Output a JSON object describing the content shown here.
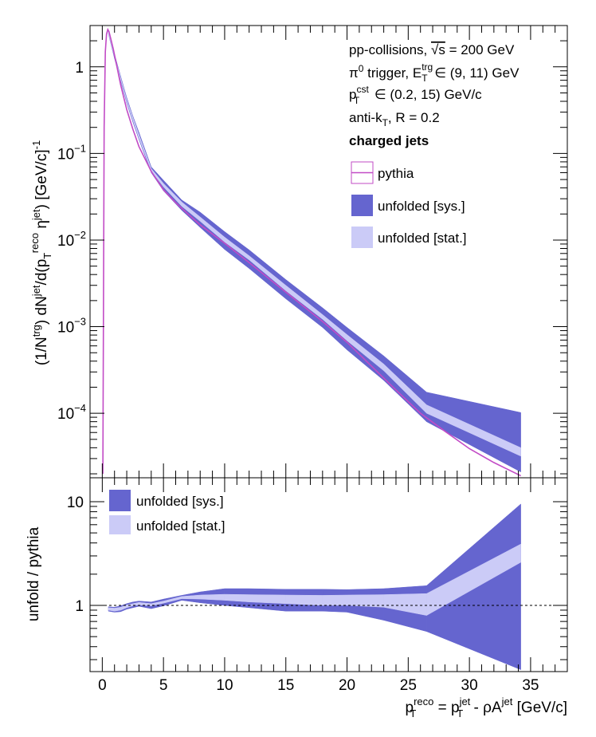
{
  "chart_data": [
    {
      "type": "line",
      "scale": {
        "x": "linear",
        "y": "log"
      },
      "xlim": [
        -1,
        38
      ],
      "ylim": [
        1.8e-05,
        3
      ],
      "ylabel": {
        "p1": "(1/N",
        "sup1": "trg",
        "p2": ") dN",
        "sup2": "jet",
        "p3": "/d(p",
        "sub3": "T",
        "sup3": "reco",
        "p4": " η",
        "sup4": "jet",
        "p5": ") [GeV/c]",
        "sup5": "-1"
      },
      "y_ticks": [
        {
          "value": 0.0001,
          "base": "10",
          "exp": "−4"
        },
        {
          "value": 0.001,
          "base": "10",
          "exp": "−3"
        },
        {
          "value": 0.01,
          "base": "10",
          "exp": "−2"
        },
        {
          "value": 0.1,
          "base": "10",
          "exp": "−1"
        },
        {
          "value": 1,
          "base": "1",
          "exp": ""
        }
      ],
      "info": {
        "line1a": "pp-collisions, ",
        "line1sqrt": "√s",
        "line1b": " = 200 GeV",
        "line2a": "π",
        "line2sup": "0",
        "line2b": " trigger, E",
        "line2sup2": "trg",
        "line2sub": "T",
        "line2c": " ∈ (9, 11) GeV",
        "line3a": "p",
        "line3sup": "cst",
        "line3sub": "T",
        "line3b": " ∈ (0.2, 15) GeV/c",
        "line4a": "anti-k",
        "line4sub": "T",
        "line4b": ", R = 0.2",
        "line5": "charged jets"
      },
      "legend": {
        "pythia": "pythia",
        "sys": "unfolded [sys.]",
        "stat": "unfolded [stat.]"
      },
      "colors": {
        "pythia": "#c24bc6",
        "sys": "#6565cf",
        "stat": "#cbcbf7"
      },
      "series": [
        {
          "name": "pythia",
          "x": [
            0.05,
            0.15,
            0.25,
            0.35,
            0.45,
            0.55,
            0.7,
            0.9,
            1.2,
            1.5,
            2,
            2.5,
            3,
            4,
            5,
            6,
            7,
            8,
            10,
            12,
            15,
            18,
            20,
            22,
            24,
            26,
            28,
            30,
            32,
            34.2
          ],
          "y": [
            2e-05,
            0.2,
            1.5,
            2.4,
            2.7,
            2.55,
            2.1,
            1.6,
            1.0,
            0.62,
            0.32,
            0.19,
            0.12,
            0.062,
            0.038,
            0.027,
            0.02,
            0.015,
            0.0092,
            0.0055,
            0.0025,
            0.00115,
            0.00066,
            0.00035,
            0.000185,
            0.0001,
            6.2e-05,
            3.9e-05,
            2.7e-05,
            1.9e-05
          ]
        },
        {
          "name": "unfolded [sys.]",
          "x": [
            0.5,
            1,
            1.5,
            2,
            2.5,
            3,
            4,
            5,
            6.5,
            8,
            10,
            12,
            15,
            18,
            20,
            23,
            26.5,
            34.2
          ],
          "low": [
            2.4,
            1.25,
            0.68,
            0.38,
            0.23,
            0.145,
            0.06,
            0.037,
            0.022,
            0.014,
            0.0078,
            0.0047,
            0.0021,
            0.00098,
            0.00054,
            0.00024,
            8e-05,
            2.1e-05
          ],
          "high": [
            2.6,
            1.4,
            0.78,
            0.44,
            0.27,
            0.175,
            0.07,
            0.049,
            0.029,
            0.021,
            0.0125,
            0.0077,
            0.0035,
            0.00165,
            0.00098,
            0.00046,
            0.000175,
            0.000102
          ]
        },
        {
          "name": "unfolded [stat.]",
          "x": [
            0.5,
            1,
            1.5,
            2,
            2.5,
            3,
            4,
            5,
            6.5,
            8,
            10,
            12,
            15,
            18,
            20,
            23,
            26.5,
            34.2
          ],
          "low": [
            2.45,
            1.3,
            0.71,
            0.395,
            0.24,
            0.15,
            0.063,
            0.041,
            0.0245,
            0.0165,
            0.0095,
            0.0059,
            0.0026,
            0.00122,
            0.00069,
            0.00031,
            0.0001,
            3.2e-05
          ],
          "high": [
            2.55,
            1.36,
            0.75,
            0.42,
            0.26,
            0.165,
            0.067,
            0.045,
            0.0275,
            0.0185,
            0.0108,
            0.0066,
            0.003,
            0.00138,
            0.00081,
            0.00037,
            0.000125,
            4e-05
          ]
        }
      ]
    },
    {
      "type": "area",
      "scale": {
        "x": "linear",
        "y": "log"
      },
      "xlim": [
        -1,
        38
      ],
      "ylim": [
        0.23,
        17
      ],
      "xlabel": {
        "p1": "p",
        "sub1": "T",
        "sup1": "reco",
        "p2": " = p",
        "sub2": "T",
        "sup2": "jet",
        "p3": " - ρA",
        "sup3": "jet",
        "p4": " [GeV/c]"
      },
      "ylabel": "unfold / pythia",
      "x_ticks": [
        0,
        5,
        10,
        15,
        20,
        25,
        30,
        35
      ],
      "y_ticks": [
        {
          "value": 1,
          "label": "1"
        },
        {
          "value": 10,
          "label": "10"
        }
      ],
      "reference_line": 1,
      "legend": {
        "sys": "unfolded [sys.]",
        "stat": "unfolded [stat.]"
      },
      "series": [
        {
          "name": "unfolded [sys.]",
          "x": [
            0.5,
            1,
            1.5,
            2,
            2.5,
            3,
            4,
            5,
            6.5,
            8,
            10,
            12,
            15,
            18,
            20,
            23,
            26.5,
            34.2
          ],
          "low": [
            0.88,
            0.86,
            0.87,
            0.92,
            0.95,
            0.98,
            0.93,
            0.99,
            1.12,
            1.06,
            1.0,
            0.95,
            0.88,
            0.88,
            0.86,
            0.72,
            0.56,
            0.24
          ],
          "high": [
            0.97,
            0.96,
            0.99,
            1.04,
            1.08,
            1.1,
            1.08,
            1.15,
            1.25,
            1.35,
            1.45,
            1.45,
            1.43,
            1.43,
            1.42,
            1.45,
            1.55,
            9.5
          ]
        },
        {
          "name": "unfolded [stat.]",
          "x": [
            0.5,
            1,
            1.5,
            2,
            2.5,
            3,
            4,
            5,
            6.5,
            8,
            10,
            12,
            15,
            18,
            20,
            23,
            26.5,
            34.2
          ],
          "low": [
            0.9,
            0.88,
            0.9,
            0.95,
            0.99,
            1.01,
            0.99,
            1.05,
            1.16,
            1.15,
            1.12,
            1.08,
            1.04,
            1.0,
            1.0,
            0.96,
            0.8,
            2.6
          ],
          "high": [
            0.95,
            0.94,
            0.96,
            1.01,
            1.04,
            1.07,
            1.04,
            1.1,
            1.22,
            1.26,
            1.28,
            1.27,
            1.26,
            1.25,
            1.26,
            1.27,
            1.3,
            3.9
          ]
        }
      ]
    }
  ]
}
